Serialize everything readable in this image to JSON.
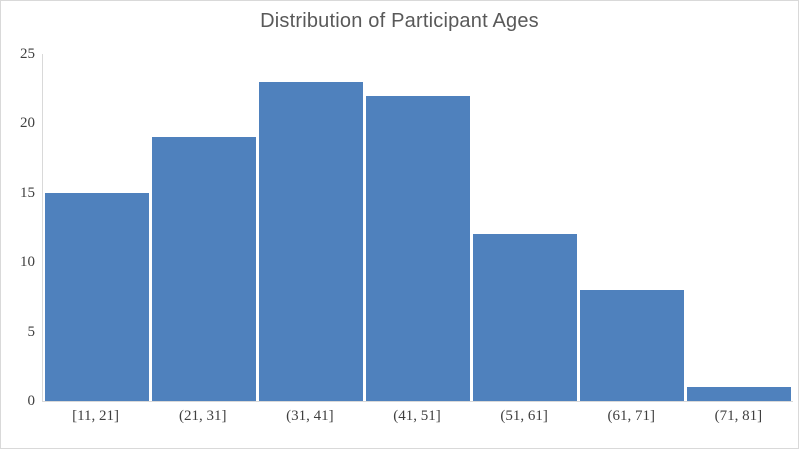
{
  "chart_data": {
    "type": "bar",
    "subtype": "histogram",
    "title": "Distribution of Participant Ages",
    "categories": [
      "[11, 21]",
      "(21, 31]",
      "(31, 41]",
      "(41, 51]",
      "(51, 61]",
      "(61, 71]",
      "(71, 81]"
    ],
    "values": [
      15,
      19,
      23,
      22,
      12,
      8,
      1
    ],
    "xlabel": "",
    "ylabel": "",
    "ylim": [
      0,
      25
    ],
    "yticks": [
      0,
      5,
      10,
      15,
      20,
      25
    ],
    "grid": false,
    "legend_position": "none",
    "colors": {
      "bar": "#4f81bd",
      "axis_line": "#d9d9d9",
      "chart_border": "#d9d9d9",
      "title_text": "#595959",
      "tick_text": "#3f3f3f",
      "background": "#ffffff"
    }
  }
}
